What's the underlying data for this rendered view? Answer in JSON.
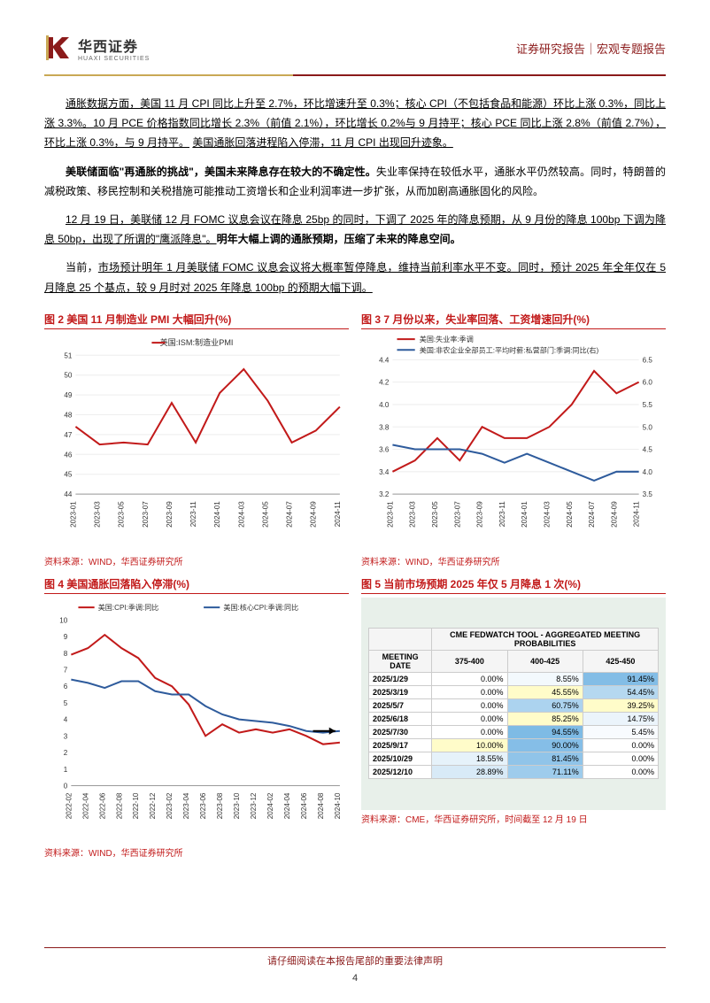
{
  "header": {
    "company_cn": "华西证券",
    "company_en": "HUAXI SECURITIES",
    "right_text": "证券研究报告｜宏观专题报告",
    "logo_color_gold": "#c9a855",
    "logo_color_red": "#8b1a1a"
  },
  "paragraphs": {
    "p1_pre": "通胀数据方面，美国 11 月 CPI 同比上升至 2.7%，环比增速升至 0.3%；核心 CPI（不包括食品和能源）环比上涨 0.3%，同比上涨 3.3%。10 月 PCE 价格指数同比增长 2.3%（前值 2.1%），环比增长 0.2%与 9 月持平；核心 PCE 同比上涨 2.8%（前值 2.7%），环比上涨 0.3%，与 9 月持平。",
    "p1_ul": "美国通胀回落进程陷入停滞，11 月 CPI 出现回升迹象。",
    "p2_bold": "美联储面临\"再通胀的挑战\"，美国未来降息存在较大的不确定性。",
    "p2_rest": "失业率保持在较低水平，通胀水平仍然较高。同时，特朗普的减税政策、移民控制和关税措施可能推动工资增长和企业利润率进一步扩张，从而加剧高通胀固化的风险。",
    "p3_ul": "12 月 19 日，美联储 12 月 FOMC 议息会议在降息 25bp 的同时，下调了 2025 年的降息预期，从 9 月份的降息 100bp 下调为降息 50bp，出现了所谓的\"鹰派降息\"。",
    "p3_bold": "明年大幅上调的通胀预期，压缩了未来的降息空间。",
    "p4_pre": "当前，",
    "p4_ul": "市场预计明年 1 月美联储 FOMC 议息会议将大概率暂停降息，维持当前利率水平不变。同时，预计 2025 年全年仅在 5 月降息 25 个基点，较 9 月时对 2025 年降息 100bp 的预期大幅下调。"
  },
  "chart2": {
    "title": "图 2 美国 11 月制造业 PMI 大幅回升(%)",
    "legend": "美国:ISM:制造业PMI",
    "type": "line",
    "color": "#c21a1a",
    "x_labels": [
      "2023-01",
      "2023-03",
      "2023-05",
      "2023-07",
      "2023-09",
      "2023-11",
      "2024-01",
      "2024-03",
      "2024-05",
      "2024-07",
      "2024-09",
      "2024-11"
    ],
    "values": [
      47.4,
      46.5,
      46.6,
      46.5,
      48.6,
      46.6,
      49.1,
      50.3,
      48.7,
      46.6,
      47.2,
      48.4
    ],
    "ylim": [
      44,
      51
    ],
    "ytick_step": 1,
    "background": "#ffffff",
    "grid_color": "#dddddd",
    "label_fontsize": 8,
    "line_width": 2,
    "source": "资料来源：WIND，华西证券研究所"
  },
  "chart3": {
    "title": "图 3 7 月份以来，失业率回落、工资增速回升(%)",
    "legend1": "美国:失业率:季调",
    "legend2": "美国:非农企业全部员工:平均时薪:私营部门:季调:同比(右)",
    "type": "dual-line",
    "color1": "#c21a1a",
    "color2": "#2e5b9c",
    "x_labels": [
      "2023-01",
      "2023-03",
      "2023-05",
      "2023-07",
      "2023-09",
      "2023-11",
      "2024-01",
      "2024-03",
      "2024-05",
      "2024-07",
      "2024-09",
      "2024-11"
    ],
    "values1": [
      3.4,
      3.5,
      3.7,
      3.5,
      3.8,
      3.7,
      3.7,
      3.8,
      4.0,
      4.3,
      4.1,
      4.2
    ],
    "values2": [
      4.6,
      4.5,
      4.5,
      4.5,
      4.4,
      4.2,
      4.4,
      4.2,
      4.0,
      3.8,
      4.0,
      4.0
    ],
    "ylim_left": [
      3.2,
      4.4
    ],
    "ytick_left_step": 0.2,
    "ylim_right": [
      3.5,
      6.5
    ],
    "ytick_right_step": 0.5,
    "background": "#ffffff",
    "grid_color": "#dddddd",
    "line_width": 2,
    "source": "资料来源：WIND，华西证券研究所"
  },
  "chart4": {
    "title": "图 4 美国通胀回落陷入停滞(%)",
    "legend1": "美国:CPI:季调:同比",
    "legend2": "美国:核心CPI:季调:同比",
    "type": "dual-line-single-axis",
    "color1": "#c21a1a",
    "color2": "#2e5b9c",
    "x_labels": [
      "2022-02",
      "2022-04",
      "2022-06",
      "2022-08",
      "2022-10",
      "2022-12",
      "2023-02",
      "2023-04",
      "2023-06",
      "2023-08",
      "2023-10",
      "2023-12",
      "2024-02",
      "2024-04",
      "2024-06",
      "2024-08",
      "2024-10"
    ],
    "values1": [
      7.9,
      8.3,
      9.1,
      8.3,
      7.7,
      6.5,
      6.0,
      4.9,
      3.0,
      3.7,
      3.2,
      3.4,
      3.2,
      3.4,
      3.0,
      2.5,
      2.6
    ],
    "values2": [
      6.4,
      6.2,
      5.9,
      6.3,
      6.3,
      5.7,
      5.5,
      5.5,
      4.8,
      4.3,
      4.0,
      3.9,
      3.8,
      3.6,
      3.3,
      3.2,
      3.3
    ],
    "ylim": [
      0,
      10
    ],
    "ytick_step": 1,
    "background": "#ffffff",
    "line_width": 2,
    "arrow_color": "#000000",
    "source": "资料来源：WIND，华西证券研究所"
  },
  "chart5": {
    "title": "图 5 当前市场预期 2025 年仅 5 月降息 1 次(%)",
    "table_header": "CME FEDWATCH TOOL - AGGREGATED MEETING PROBABILITIES",
    "columns": [
      "MEETING DATE",
      "375-400",
      "400-425",
      "425-450"
    ],
    "rows": [
      {
        "date": "2025/1/29",
        "c1": "0.00%",
        "c2": "8.55%",
        "c3": "91.45%",
        "hl": [
          false,
          false,
          false
        ]
      },
      {
        "date": "2025/3/19",
        "c1": "0.00%",
        "c2": "45.55%",
        "c3": "54.45%",
        "hl": [
          false,
          true,
          false
        ]
      },
      {
        "date": "2025/5/7",
        "c1": "0.00%",
        "c2": "60.75%",
        "c3": "39.25%",
        "hl": [
          false,
          false,
          true
        ]
      },
      {
        "date": "2025/6/18",
        "c1": "0.00%",
        "c2": "85.25%",
        "c3": "14.75%",
        "hl": [
          false,
          true,
          false
        ]
      },
      {
        "date": "2025/7/30",
        "c1": "0.00%",
        "c2": "94.55%",
        "c3": "5.45%",
        "hl": [
          false,
          false,
          false
        ]
      },
      {
        "date": "2025/9/17",
        "c1": "10.00%",
        "c2": "90.00%",
        "c3": "0.00%",
        "hl": [
          true,
          false,
          false
        ]
      },
      {
        "date": "2025/10/29",
        "c1": "18.55%",
        "c2": "81.45%",
        "c3": "0.00%",
        "hl": [
          false,
          false,
          false
        ]
      },
      {
        "date": "2025/12/10",
        "c1": "28.89%",
        "c2": "71.11%",
        "c3": "0.00%",
        "hl": [
          false,
          false,
          false
        ]
      }
    ],
    "highlight_color": "#fffcc9",
    "gradient_low": "#ffffff",
    "gradient_high": "#77b7e4",
    "source": "资料来源：CME，华西证券研究所，时间截至 12 月 19 日"
  },
  "footer": {
    "text": "请仔细阅读在本报告尾部的重要法律声明",
    "page": "4"
  }
}
